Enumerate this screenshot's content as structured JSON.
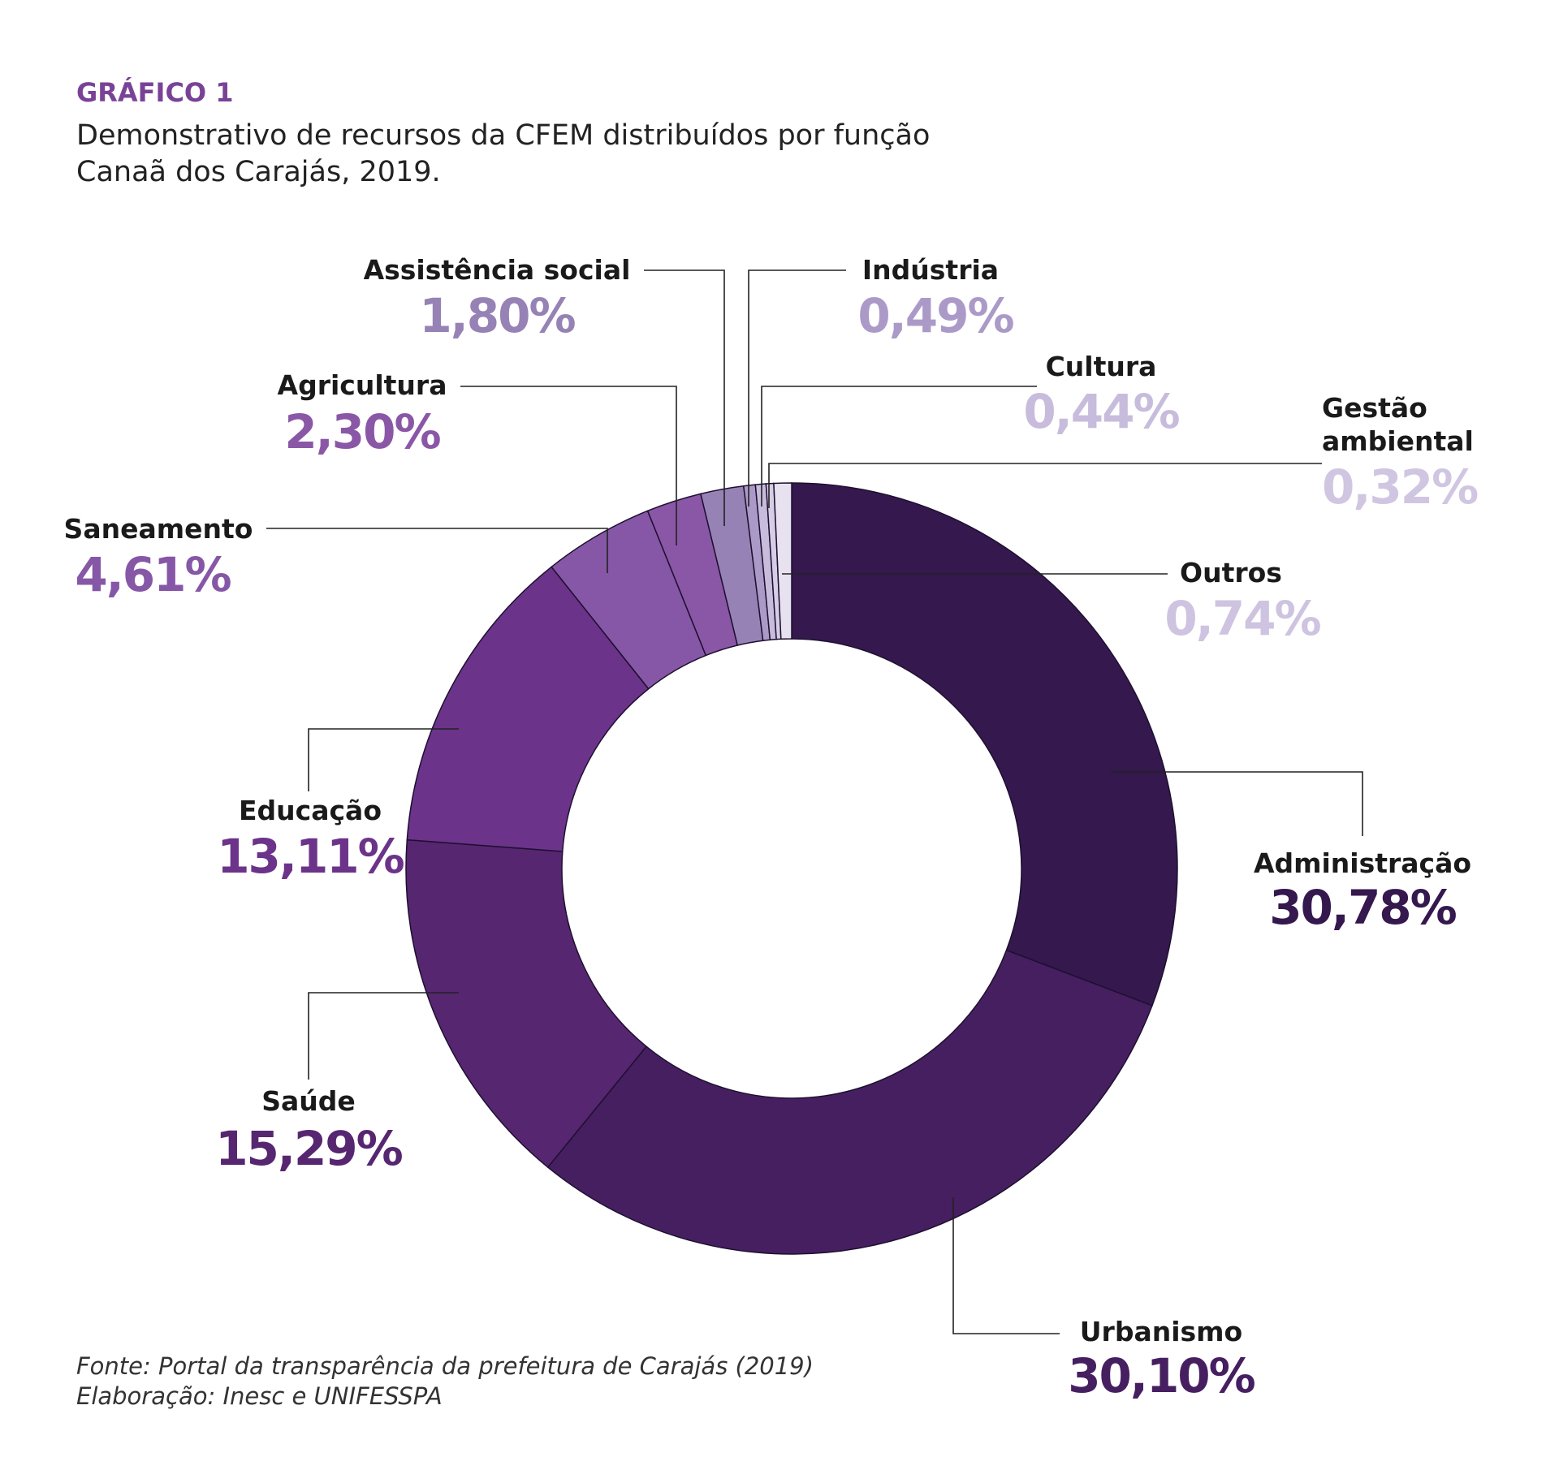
{
  "chart_data": {
    "type": "pie",
    "donut": true,
    "heading": "GRÁFICO 1",
    "title_line1": "Demonstrativo de recursos da CFEM distribuídos por função",
    "title_line2": "Canaã dos Carajás, 2019.",
    "source_line1": "Fonte: Portal da transparência da prefeitura de Carajás (2019)",
    "source_line2": "Elaboração: Inesc e UNIFESSPA",
    "heading_color": "#7a4296",
    "slices": [
      {
        "label": "Administração",
        "value": 30.78,
        "value_label": "30,78%",
        "color": "#34184e",
        "text_color": "#34184e"
      },
      {
        "label": "Urbanismo",
        "value": 30.1,
        "value_label": "30,10%",
        "color": "#461f61",
        "text_color": "#461f61"
      },
      {
        "label": "Saúde",
        "value": 15.29,
        "value_label": "15,29%",
        "color": "#572670",
        "text_color": "#572670"
      },
      {
        "label": "Educação",
        "value": 13.11,
        "value_label": "13,11%",
        "color": "#6c338a",
        "text_color": "#6c338a"
      },
      {
        "label": "Saneamento",
        "value": 4.61,
        "value_label": "4,61%",
        "color": "#8657a6",
        "text_color": "#8657a6"
      },
      {
        "label": "Agricultura",
        "value": 2.3,
        "value_label": "2,30%",
        "color": "#8a57a6",
        "text_color": "#8a57a6"
      },
      {
        "label": "Assistência social",
        "value": 1.8,
        "value_label": "1,80%",
        "color": "#9682b4",
        "text_color": "#9682b4"
      },
      {
        "label": "Indústria",
        "value": 0.49,
        "value_label": "0,49%",
        "color": "#ab9ac8",
        "text_color": "#ab9ac8"
      },
      {
        "label": "Cultura",
        "value": 0.44,
        "value_label": "0,44%",
        "color": "#c7bcdc",
        "text_color": "#c7bcdc"
      },
      {
        "label": "Gestão ambiental",
        "value": 0.32,
        "value_label": "0,32%",
        "color": "#d6cee6",
        "text_color": "#d0c6e2"
      },
      {
        "label": "Outros",
        "value": 0.74,
        "value_label": "0,74%",
        "color": "#e8e2f0",
        "text_color": "#cec3e0"
      }
    ]
  }
}
